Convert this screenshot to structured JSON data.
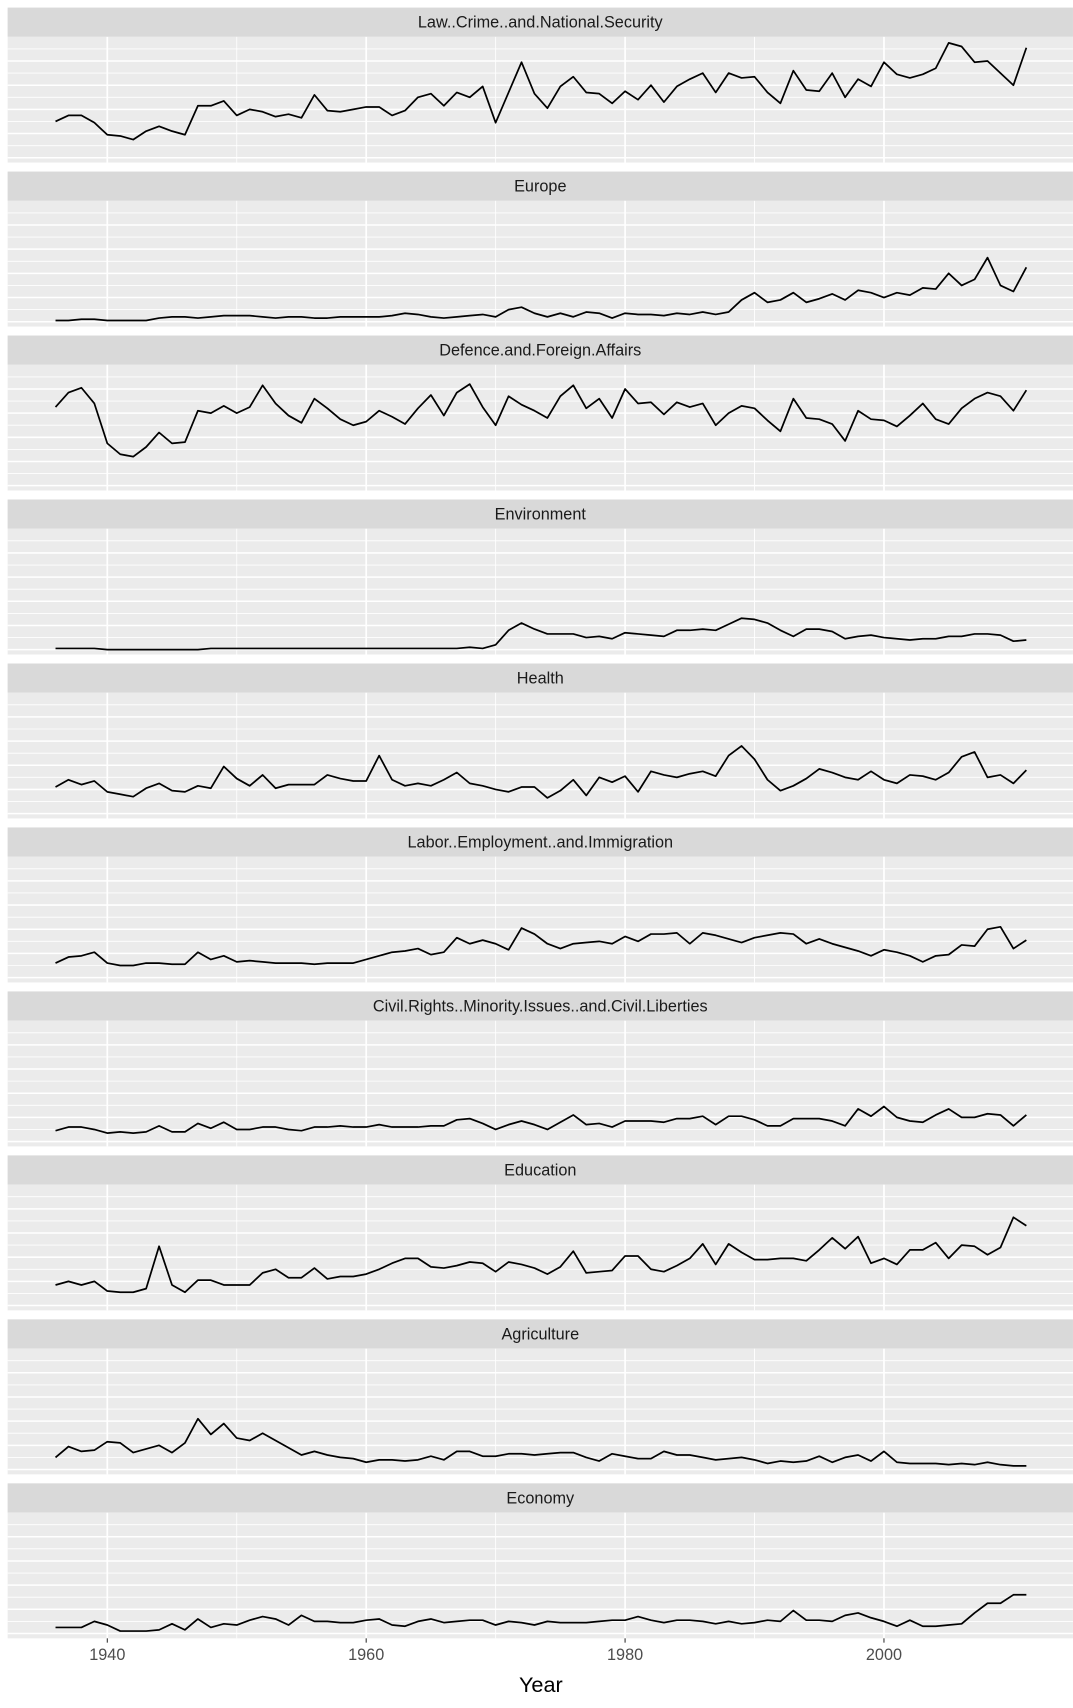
{
  "chart_data": {
    "type": "line",
    "facets": true,
    "xlabel": "Year",
    "x": [
      1936,
      1937,
      1938,
      1939,
      1940,
      1941,
      1942,
      1943,
      1944,
      1945,
      1946,
      1947,
      1948,
      1949,
      1950,
      1951,
      1952,
      1953,
      1954,
      1955,
      1956,
      1957,
      1958,
      1959,
      1960,
      1961,
      1962,
      1963,
      1964,
      1965,
      1966,
      1967,
      1968,
      1969,
      1970,
      1971,
      1972,
      1973,
      1974,
      1975,
      1976,
      1977,
      1978,
      1979,
      1980,
      1981,
      1982,
      1983,
      1984,
      1985,
      1986,
      1987,
      1988,
      1989,
      1990,
      1991,
      1992,
      1993,
      1994,
      1995,
      1996,
      1997,
      1998,
      1999,
      2000,
      2001,
      2002,
      2003,
      2004,
      2005,
      2006,
      2007,
      2008,
      2009,
      2010,
      2011
    ],
    "xlim": [
      1932.3,
      2014.6
    ],
    "xticks": [
      1940,
      1960,
      1980,
      2000
    ],
    "ylim": [
      -4,
      100
    ],
    "yticks": [
      0,
      10,
      20,
      30,
      40,
      50,
      60,
      70,
      80,
      90
    ],
    "grid": true,
    "series": [
      {
        "name": "Law..Crime..and.National.Security",
        "color": "#000000",
        "values": [
          30,
          35,
          35,
          29,
          19,
          18,
          15,
          22,
          26,
          22,
          19,
          43,
          43,
          47,
          35,
          40,
          38,
          34,
          36,
          33,
          52,
          39,
          38,
          40,
          42,
          42,
          35,
          39,
          50,
          53,
          43,
          54,
          50,
          59,
          29,
          54,
          79,
          53,
          41,
          59,
          67,
          54,
          53,
          45,
          55,
          48,
          60,
          46,
          59,
          65,
          70,
          54,
          70,
          66,
          67,
          54,
          45,
          72,
          56,
          55,
          70,
          50,
          65,
          59,
          79,
          69,
          66,
          69,
          74,
          95,
          92,
          79,
          80,
          70,
          60,
          91
        ]
      },
      {
        "name": "Europe",
        "color": "#000000",
        "values": [
          1,
          1,
          2,
          2,
          1,
          1,
          1,
          1,
          3,
          4,
          4,
          3,
          4,
          5,
          5,
          5,
          4,
          3,
          4,
          4,
          3,
          3,
          4,
          4,
          4,
          4,
          5,
          7,
          6,
          4,
          3,
          4,
          5,
          6,
          4,
          10,
          12,
          7,
          4,
          7,
          4,
          8,
          7,
          3,
          7,
          6,
          6,
          5,
          7,
          6,
          8,
          6,
          8,
          18,
          24,
          16,
          18,
          24,
          16,
          19,
          23,
          18,
          26,
          24,
          20,
          24,
          22,
          28,
          27,
          40,
          30,
          35,
          53,
          30,
          25,
          45
        ]
      },
      {
        "name": "Defence.and.Foreign.Affairs",
        "color": "#000000",
        "values": [
          65,
          77,
          81,
          68,
          35,
          26,
          24,
          32,
          44,
          35,
          36,
          62,
          60,
          66,
          60,
          65,
          83,
          68,
          58,
          52,
          72,
          64,
          55,
          50,
          53,
          62,
          57,
          51,
          64,
          75,
          58,
          77,
          84,
          65,
          50,
          74,
          67,
          62,
          56,
          74,
          83,
          64,
          72,
          56,
          80,
          68,
          69,
          59,
          69,
          65,
          68,
          50,
          60,
          66,
          64,
          54,
          45,
          72,
          56,
          55,
          51,
          37,
          62,
          55,
          54,
          49,
          58,
          68,
          55,
          51,
          64,
          72,
          77,
          74,
          62,
          79
        ]
      },
      {
        "name": "Environment",
        "color": "#000000",
        "values": [
          1,
          1,
          1,
          1,
          0,
          0,
          0,
          0,
          0,
          0,
          0,
          0,
          1,
          1,
          1,
          1,
          1,
          1,
          1,
          1,
          1,
          1,
          1,
          1,
          1,
          1,
          1,
          1,
          1,
          1,
          1,
          1,
          2,
          1,
          4,
          16,
          22,
          17,
          13,
          13,
          13,
          10,
          11,
          9,
          14,
          13,
          12,
          11,
          16,
          16,
          17,
          16,
          21,
          26,
          25,
          22,
          16,
          11,
          17,
          17,
          15,
          9,
          11,
          12,
          10,
          9,
          8,
          9,
          9,
          11,
          11,
          13,
          13,
          12,
          7,
          8
        ]
      },
      {
        "name": "Health",
        "color": "#000000",
        "values": [
          22,
          28,
          24,
          27,
          18,
          16,
          14,
          21,
          25,
          19,
          18,
          23,
          21,
          39,
          29,
          23,
          32,
          21,
          24,
          24,
          24,
          32,
          29,
          27,
          27,
          48,
          28,
          23,
          25,
          23,
          28,
          34,
          25,
          23,
          20,
          18,
          22,
          22,
          13,
          19,
          28,
          15,
          30,
          26,
          31,
          18,
          35,
          32,
          30,
          33,
          35,
          31,
          48,
          56,
          45,
          28,
          19,
          23,
          29,
          37,
          34,
          30,
          28,
          35,
          28,
          25,
          32,
          31,
          28,
          34,
          47,
          51,
          30,
          32,
          25,
          36
        ]
      },
      {
        "name": "Labor..Employment..and.Immigration",
        "color": "#000000",
        "values": [
          12,
          17,
          18,
          21,
          12,
          10,
          10,
          12,
          12,
          11,
          11,
          21,
          15,
          18,
          13,
          14,
          13,
          12,
          12,
          12,
          11,
          12,
          12,
          12,
          15,
          18,
          21,
          22,
          24,
          19,
          21,
          33,
          28,
          31,
          28,
          23,
          41,
          36,
          28,
          24,
          28,
          29,
          30,
          28,
          34,
          30,
          36,
          36,
          37,
          28,
          37,
          35,
          32,
          29,
          33,
          35,
          37,
          36,
          28,
          32,
          28,
          25,
          22,
          18,
          23,
          21,
          18,
          13,
          18,
          19,
          27,
          26,
          40,
          42,
          24,
          31
        ]
      },
      {
        "name": "Civil.Rights..Minority.Issues..and.Civil.Liberties",
        "color": "#000000",
        "values": [
          9,
          12,
          12,
          10,
          7,
          8,
          7,
          8,
          13,
          8,
          8,
          15,
          11,
          16,
          10,
          10,
          12,
          12,
          10,
          9,
          12,
          12,
          13,
          12,
          12,
          14,
          12,
          12,
          12,
          13,
          13,
          18,
          19,
          15,
          10,
          14,
          17,
          14,
          10,
          16,
          22,
          14,
          15,
          12,
          17,
          17,
          17,
          16,
          19,
          19,
          21,
          14,
          21,
          21,
          18,
          13,
          13,
          19,
          19,
          19,
          17,
          13,
          27,
          21,
          29,
          20,
          17,
          16,
          22,
          27,
          20,
          20,
          23,
          22,
          13,
          22
        ]
      },
      {
        "name": "Education",
        "color": "#000000",
        "values": [
          17,
          20,
          17,
          20,
          12,
          11,
          11,
          14,
          49,
          17,
          11,
          21,
          21,
          17,
          17,
          17,
          27,
          30,
          23,
          23,
          31,
          22,
          24,
          24,
          26,
          30,
          35,
          39,
          39,
          32,
          31,
          33,
          36,
          35,
          28,
          36,
          34,
          31,
          26,
          32,
          45,
          27,
          28,
          29,
          41,
          41,
          30,
          28,
          33,
          39,
          51,
          34,
          51,
          44,
          38,
          38,
          39,
          39,
          37,
          46,
          56,
          47,
          57,
          35,
          39,
          34,
          46,
          46,
          52,
          39,
          50,
          49,
          42,
          48,
          73,
          66
        ]
      },
      {
        "name": "Agriculture",
        "color": "#000000",
        "values": [
          10,
          19,
          15,
          16,
          23,
          22,
          14,
          17,
          20,
          14,
          22,
          42,
          29,
          38,
          26,
          24,
          30,
          24,
          18,
          12,
          15,
          12,
          10,
          9,
          6,
          8,
          8,
          7,
          8,
          11,
          8,
          15,
          15,
          11,
          11,
          13,
          13,
          12,
          13,
          14,
          14,
          10,
          7,
          13,
          11,
          9,
          9,
          15,
          12,
          12,
          10,
          8,
          9,
          10,
          8,
          5,
          7,
          6,
          7,
          11,
          6,
          10,
          12,
          7,
          15,
          6,
          5,
          5,
          5,
          4,
          5,
          4,
          6,
          4,
          3,
          3
        ]
      },
      {
        "name": "Economy",
        "color": "#000000",
        "values": [
          5,
          5,
          5,
          10,
          7,
          2,
          2,
          2,
          3,
          8,
          3,
          12,
          5,
          8,
          7,
          11,
          14,
          12,
          7,
          15,
          10,
          10,
          9,
          9,
          11,
          12,
          7,
          6,
          10,
          12,
          9,
          10,
          11,
          11,
          7,
          10,
          9,
          7,
          10,
          9,
          9,
          9,
          10,
          11,
          11,
          14,
          11,
          9,
          11,
          11,
          10,
          8,
          10,
          8,
          9,
          11,
          10,
          19,
          11,
          11,
          10,
          15,
          17,
          13,
          10,
          6,
          11,
          6,
          6,
          7,
          8,
          17,
          25,
          25,
          32,
          32
        ]
      }
    ]
  }
}
